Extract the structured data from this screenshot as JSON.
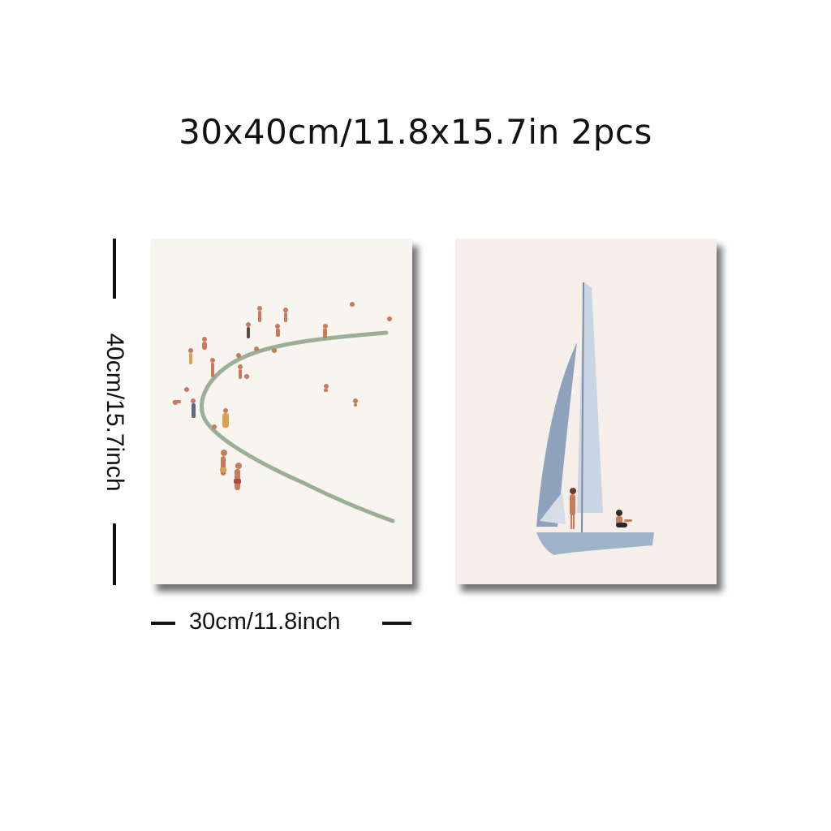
{
  "title": "30x40cm/11.8x15.7in 2pcs",
  "dimensions": {
    "height_label": "40cm/15.7inch",
    "width_label": "30cm/11.8inch"
  },
  "prints": [
    {
      "name": "beach-swimmers-print"
    },
    {
      "name": "sailboat-print"
    }
  ],
  "colors": {
    "shoreline": "#9aaf96",
    "sail": "#8ea3bb",
    "boat": "#9fb3c8",
    "skin": "#c87a5a"
  }
}
